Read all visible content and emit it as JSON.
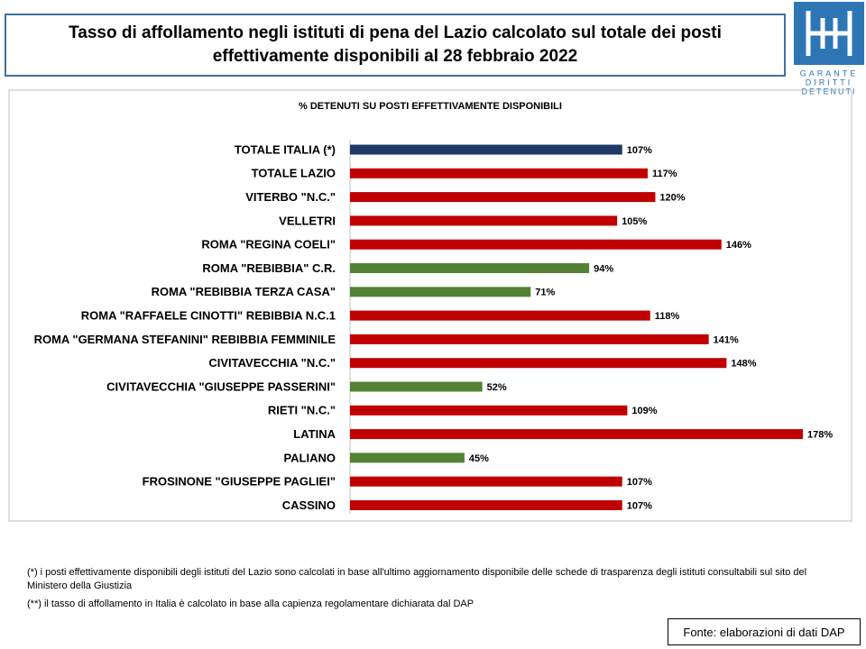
{
  "header": {
    "title": "Tasso di affollamento negli istituti di pena del Lazio calcolato sul totale dei posti effettivamente disponibili al 28 febbraio 2022",
    "logo": [
      "GARANTE",
      "DIRITTI",
      "DETENUTI"
    ]
  },
  "chart_data": {
    "type": "hbar",
    "subtitle": "% DETENUTI SU POSTI EFFETTIVAMENTE DISPONIBILI",
    "categories": [
      "TOTALE ITALIA (*)",
      "TOTALE LAZIO",
      "VITERBO \"N.C.\"",
      "VELLETRI",
      "ROMA \"REGINA COELI\"",
      "ROMA \"REBIBBIA\" C.R.",
      "ROMA \"REBIBBIA TERZA CASA\"",
      "ROMA \"RAFFAELE CINOTTI\" REBIBBIA N.C.1",
      "ROMA \"GERMANA STEFANINI\" REBIBBIA FEMMINILE",
      "CIVITAVECCHIA \"N.C.\"",
      "CIVITAVECCHIA \"GIUSEPPE PASSERINI\"",
      "RIETI \"N.C.\"",
      "LATINA",
      "PALIANO",
      "FROSINONE \"GIUSEPPE PAGLIEI\"",
      "CASSINO"
    ],
    "values": [
      107,
      117,
      120,
      105,
      146,
      94,
      71,
      118,
      141,
      148,
      52,
      109,
      178,
      45,
      107,
      107
    ],
    "value_labels": [
      "107%",
      "117%",
      "120%",
      "105%",
      "146%",
      "94%",
      "71%",
      "118%",
      "141%",
      "148%",
      "52%",
      "109%",
      "178%",
      "45%",
      "107%",
      "107%"
    ],
    "colors": [
      "#1f3864",
      "#c00000",
      "#c00000",
      "#c00000",
      "#c00000",
      "#548235",
      "#548235",
      "#c00000",
      "#c00000",
      "#c00000",
      "#548235",
      "#c00000",
      "#c00000",
      "#548235",
      "#c00000",
      "#c00000"
    ]
  },
  "notes": [
    "(*) i posti effettivamente disponibili  degli istituti del Lazio sono calcolati in base all'ultimo aggiornamento disponibile  delle schede di trasparenza degli istituti consultabili sul sito del Ministero della Giustizia",
    "(**) il tasso di affollamento in Italia è calcolato in base alla capienza regolamentare dichiarata dal DAP"
  ],
  "source": "Fonte: elaborazioni di dati DAP"
}
